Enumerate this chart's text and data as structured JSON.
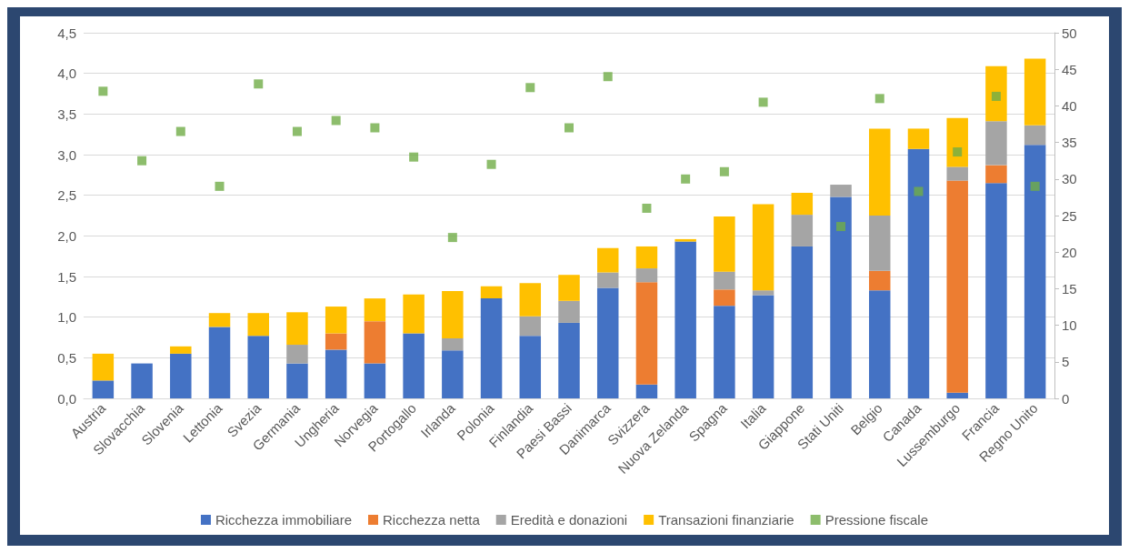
{
  "chart_data": {
    "type": "bar",
    "stacked": true,
    "categories": [
      "Austria",
      "Slovacchia",
      "Slovenia",
      "Lettonia",
      "Svezia",
      "Germania",
      "Ungheria",
      "Norvegia",
      "Portogallo",
      "Irlanda",
      "Polonia",
      "Finlandia",
      "Paesi Bassi",
      "Danimarca",
      "Svizzera",
      "Nuova Zelanda",
      "Spagna",
      "Italia",
      "Giappone",
      "Stati Uniti",
      "Belgio",
      "Canada",
      "Lussemburgo",
      "Francia",
      "Regno Unito"
    ],
    "series": [
      {
        "name": "Ricchezza immobiliare",
        "color": "#4472c4",
        "values": [
          0.22,
          0.43,
          0.55,
          0.88,
          0.77,
          0.43,
          0.6,
          0.43,
          0.8,
          0.59,
          1.23,
          0.77,
          0.93,
          1.36,
          0.17,
          1.93,
          1.14,
          1.27,
          1.87,
          2.48,
          1.33,
          3.07,
          0.07,
          2.65,
          3.12
        ]
      },
      {
        "name": "Ricchezza netta",
        "color": "#ed7d31",
        "values": [
          0,
          0,
          0,
          0,
          0,
          0,
          0.2,
          0.52,
          0,
          0,
          0,
          0,
          0,
          0,
          1.26,
          0,
          0.2,
          0,
          0,
          0,
          0.24,
          0,
          2.61,
          0.22,
          0
        ]
      },
      {
        "name": "Eredità e donazioni",
        "color": "#a5a5a5",
        "values": [
          0,
          0,
          0,
          0,
          0,
          0.23,
          0,
          0,
          0,
          0.15,
          0,
          0.24,
          0.27,
          0.19,
          0.17,
          0,
          0.22,
          0.06,
          0.39,
          0.15,
          0.68,
          0,
          0.17,
          0.54,
          0.24
        ]
      },
      {
        "name": "Transazioni finanziarie",
        "color": "#ffc000",
        "values": [
          0.33,
          0,
          0.09,
          0.17,
          0.28,
          0.4,
          0.33,
          0.28,
          0.48,
          0.58,
          0.15,
          0.41,
          0.32,
          0.3,
          0.27,
          0.03,
          0.68,
          1.06,
          0.27,
          0,
          1.07,
          0.25,
          0.6,
          0.68,
          0.82
        ]
      },
      {
        "name": "Pressione fiscale",
        "type": "scatter",
        "axis": "y2",
        "marker": "square",
        "color": "#70ad47",
        "x": [
          "Austria",
          "Slovacchia",
          "Slovenia",
          "Lettonia",
          "Svezia",
          "Germania",
          "Ungheria",
          "Norvegia",
          "Portogallo",
          "Irlanda",
          "Polonia",
          "Finlandia",
          "Paesi Bassi",
          "Danimarca",
          "Svizzera",
          "Nuova Zelanda",
          "Spagna",
          "Italia",
          "Giappone",
          "Stati Uniti",
          "Belgio",
          "Canada",
          "Lussemburgo",
          "Francia",
          "Regno Unito"
        ],
        "values": [
          42,
          32.5,
          36.5,
          29,
          43,
          36.5,
          38,
          37,
          33,
          22,
          32,
          42.5,
          37,
          44,
          26,
          30,
          31,
          40.5,
          null,
          23.5,
          41,
          28.3,
          33.7,
          41.3,
          29
        ]
      }
    ],
    "ylim": [
      0,
      4.5
    ],
    "yticks": [
      {
        "value": 0,
        "label": "0,0"
      },
      {
        "value": 0.5,
        "label": "0,5"
      },
      {
        "value": 1,
        "label": "1,0"
      },
      {
        "value": 1.5,
        "label": "1,5"
      },
      {
        "value": 2,
        "label": "2,0"
      },
      {
        "value": 2.5,
        "label": "2,5"
      },
      {
        "value": 3,
        "label": "3,0"
      },
      {
        "value": 3.5,
        "label": "3,5"
      },
      {
        "value": 4,
        "label": "4,0"
      },
      {
        "value": 4.5,
        "label": "4,5"
      }
    ],
    "y2lim": [
      0,
      50
    ],
    "y2ticks": [
      0,
      5,
      10,
      15,
      20,
      25,
      30,
      35,
      40,
      45,
      50
    ],
    "grid": "y",
    "legend": "bottom"
  }
}
